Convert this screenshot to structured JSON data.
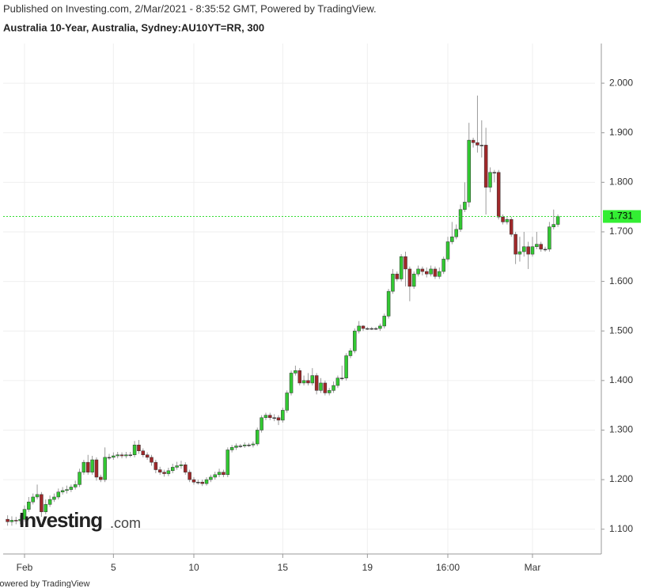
{
  "chart_data": {
    "type": "candlestick",
    "header": "Published on Investing.com, 2/Mar/2021 - 8:35:52 GMT, Powered by TradingView.",
    "title": "Australia 10-Year, Australia, Sydney:AU10YT=RR, 300",
    "watermark": "Investing",
    "watermark_suffix": ".com",
    "footer": "Powered by TradingView",
    "up_color": "#32c832",
    "down_color": "#a0282a",
    "wick_color": "#9a9a9a",
    "grid": true,
    "categories": [
      null,
      null,
      null,
      null,
      "Feb",
      null,
      null,
      null,
      null,
      null,
      null,
      null,
      null,
      null,
      null,
      null,
      null,
      null,
      null,
      null,
      null,
      null,
      null,
      null,
      null,
      "5",
      null,
      null,
      null,
      null,
      null,
      null,
      null,
      null,
      null,
      null,
      null,
      null,
      null,
      null,
      null,
      null,
      null,
      null,
      "10",
      null,
      null,
      null,
      null,
      null,
      null,
      null,
      null,
      null,
      null,
      null,
      null,
      null,
      null,
      null,
      null,
      null,
      null,
      null,
      null,
      "15",
      null,
      null,
      null,
      null,
      null,
      null,
      null,
      null,
      null,
      null,
      null,
      null,
      null,
      null,
      null,
      null,
      null,
      null,
      null,
      "19",
      null,
      null,
      null,
      null,
      null,
      null,
      null,
      null,
      null,
      null,
      null,
      null,
      null,
      null,
      null,
      null,
      null,
      null,
      "16:00",
      null,
      null,
      null,
      null,
      null,
      null,
      null,
      null,
      null,
      null,
      null,
      null,
      null,
      null,
      null,
      null,
      null,
      null,
      null,
      "Mar",
      null,
      null,
      null,
      null,
      null,
      null
    ],
    "open": [
      1.12,
      1.115,
      1.118,
      1.117,
      1.12,
      1.14,
      1.155,
      1.165,
      1.17,
      1.135,
      1.15,
      1.16,
      1.165,
      1.175,
      1.178,
      1.18,
      1.185,
      1.19,
      1.215,
      1.235,
      1.215,
      1.24,
      1.205,
      1.2,
      1.245,
      1.245,
      1.248,
      1.25,
      1.248,
      1.25,
      1.25,
      1.27,
      1.258,
      1.25,
      1.245,
      1.235,
      1.22,
      1.215,
      1.212,
      1.218,
      1.225,
      1.228,
      1.23,
      1.215,
      1.2,
      1.195,
      1.195,
      1.192,
      1.2,
      1.205,
      1.21,
      1.215,
      1.21,
      1.26,
      1.265,
      1.268,
      1.268,
      1.27,
      1.27,
      1.272,
      1.3,
      1.325,
      1.33,
      1.325,
      1.325,
      1.32,
      1.34,
      1.375,
      1.415,
      1.42,
      1.395,
      1.4,
      1.395,
      1.41,
      1.38,
      1.395,
      1.375,
      1.38,
      1.39,
      1.405,
      1.405,
      1.45,
      1.46,
      1.5,
      1.51,
      1.505,
      1.505,
      1.505,
      1.505,
      1.51,
      1.53,
      1.58,
      1.615,
      1.605,
      1.65,
      1.625,
      1.59,
      1.615,
      1.625,
      1.62,
      1.615,
      1.625,
      1.61,
      1.62,
      1.645,
      1.68,
      1.69,
      1.705,
      1.745,
      1.76,
      1.885,
      1.88,
      1.875,
      1.875,
      1.79,
      1.82,
      1.82,
      1.73,
      1.72,
      1.725,
      1.695,
      1.655,
      1.66,
      1.67,
      1.655,
      1.67,
      1.675,
      1.665,
      1.665,
      1.71,
      1.715
    ],
    "high": [
      1.128,
      1.126,
      1.125,
      1.128,
      1.148,
      1.165,
      1.172,
      1.19,
      1.175,
      1.16,
      1.168,
      1.172,
      1.182,
      1.185,
      1.188,
      1.19,
      1.198,
      1.222,
      1.24,
      1.25,
      1.248,
      1.245,
      1.21,
      1.265,
      1.252,
      1.255,
      1.256,
      1.255,
      1.256,
      1.256,
      1.278,
      1.28,
      1.263,
      1.255,
      1.25,
      1.24,
      1.226,
      1.22,
      1.224,
      1.232,
      1.236,
      1.238,
      1.235,
      1.22,
      1.205,
      1.2,
      1.2,
      1.205,
      1.21,
      1.216,
      1.222,
      1.22,
      1.265,
      1.27,
      1.273,
      1.272,
      1.275,
      1.274,
      1.277,
      1.305,
      1.33,
      1.335,
      1.335,
      1.332,
      1.33,
      1.345,
      1.38,
      1.42,
      1.43,
      1.425,
      1.41,
      1.415,
      1.425,
      1.415,
      1.405,
      1.4,
      1.385,
      1.398,
      1.41,
      1.43,
      1.455,
      1.465,
      1.505,
      1.52,
      1.512,
      1.508,
      1.508,
      1.508,
      1.515,
      1.535,
      1.585,
      1.625,
      1.62,
      1.655,
      1.66,
      1.63,
      1.62,
      1.632,
      1.63,
      1.628,
      1.632,
      1.63,
      1.628,
      1.65,
      1.69,
      1.72,
      1.715,
      1.755,
      1.8,
      1.92,
      1.89,
      1.975,
      1.925,
      1.91,
      1.83,
      1.825,
      1.825,
      1.735,
      1.73,
      1.73,
      1.7,
      1.69,
      1.7,
      1.68,
      1.69,
      1.7,
      1.68,
      1.67,
      1.72,
      1.745,
      1.735
    ],
    "low": [
      1.107,
      1.107,
      1.11,
      1.11,
      1.115,
      1.135,
      1.15,
      1.16,
      1.125,
      1.13,
      1.145,
      1.155,
      1.16,
      1.17,
      1.172,
      1.175,
      1.18,
      1.185,
      1.21,
      1.21,
      1.21,
      1.198,
      1.195,
      1.195,
      1.24,
      1.24,
      1.243,
      1.243,
      1.243,
      1.245,
      1.245,
      1.252,
      1.245,
      1.24,
      1.228,
      1.213,
      1.21,
      1.206,
      1.207,
      1.213,
      1.22,
      1.222,
      1.21,
      1.195,
      1.19,
      1.19,
      1.187,
      1.188,
      1.195,
      1.2,
      1.205,
      1.205,
      1.205,
      1.255,
      1.26,
      1.264,
      1.264,
      1.266,
      1.265,
      1.268,
      1.295,
      1.32,
      1.32,
      1.318,
      1.31,
      1.315,
      1.335,
      1.37,
      1.41,
      1.39,
      1.39,
      1.39,
      1.39,
      1.372,
      1.375,
      1.37,
      1.37,
      1.375,
      1.385,
      1.4,
      1.4,
      1.445,
      1.455,
      1.495,
      1.5,
      1.502,
      1.502,
      1.502,
      1.5,
      1.505,
      1.525,
      1.575,
      1.6,
      1.6,
      1.59,
      1.56,
      1.585,
      1.61,
      1.612,
      1.608,
      1.61,
      1.605,
      1.605,
      1.615,
      1.64,
      1.675,
      1.685,
      1.7,
      1.74,
      1.75,
      1.87,
      1.86,
      1.85,
      1.735,
      1.78,
      1.8,
      1.725,
      1.715,
      1.715,
      1.69,
      1.635,
      1.64,
      1.65,
      1.625,
      1.65,
      1.665,
      1.66,
      1.66,
      1.66,
      1.705,
      1.71
    ],
    "close": [
      1.115,
      1.118,
      1.117,
      1.12,
      1.14,
      1.155,
      1.165,
      1.17,
      1.135,
      1.15,
      1.16,
      1.165,
      1.175,
      1.178,
      1.18,
      1.185,
      1.19,
      1.215,
      1.235,
      1.215,
      1.24,
      1.205,
      1.2,
      1.245,
      1.245,
      1.248,
      1.25,
      1.248,
      1.25,
      1.25,
      1.27,
      1.258,
      1.25,
      1.245,
      1.235,
      1.22,
      1.215,
      1.212,
      1.218,
      1.225,
      1.228,
      1.23,
      1.215,
      1.2,
      1.195,
      1.195,
      1.192,
      1.2,
      1.205,
      1.21,
      1.215,
      1.21,
      1.26,
      1.265,
      1.268,
      1.268,
      1.27,
      1.27,
      1.272,
      1.3,
      1.325,
      1.33,
      1.325,
      1.325,
      1.32,
      1.34,
      1.375,
      1.415,
      1.42,
      1.395,
      1.4,
      1.395,
      1.41,
      1.38,
      1.395,
      1.375,
      1.38,
      1.39,
      1.405,
      1.405,
      1.45,
      1.46,
      1.5,
      1.51,
      1.505,
      1.505,
      1.505,
      1.505,
      1.51,
      1.53,
      1.58,
      1.615,
      1.605,
      1.65,
      1.625,
      1.59,
      1.615,
      1.625,
      1.62,
      1.615,
      1.625,
      1.61,
      1.62,
      1.645,
      1.68,
      1.69,
      1.705,
      1.745,
      1.76,
      1.885,
      1.88,
      1.875,
      1.875,
      1.79,
      1.82,
      1.82,
      1.73,
      1.72,
      1.725,
      1.695,
      1.655,
      1.66,
      1.67,
      1.655,
      1.67,
      1.675,
      1.665,
      1.665,
      1.71,
      1.715,
      1.731
    ],
    "ylim": [
      1.05,
      2.08
    ],
    "yticks": [
      {
        "value": 1.1,
        "label": "1.100"
      },
      {
        "value": 1.2,
        "label": "1.200"
      },
      {
        "value": 1.3,
        "label": "1.300"
      },
      {
        "value": 1.4,
        "label": "1.400"
      },
      {
        "value": 1.5,
        "label": "1.500"
      },
      {
        "value": 1.6,
        "label": "1.600"
      },
      {
        "value": 1.7,
        "label": "1.700"
      },
      {
        "value": 1.8,
        "label": "1.800"
      },
      {
        "value": 1.9,
        "label": "1.900"
      },
      {
        "value": 2.0,
        "label": "2.000"
      }
    ]
  }
}
